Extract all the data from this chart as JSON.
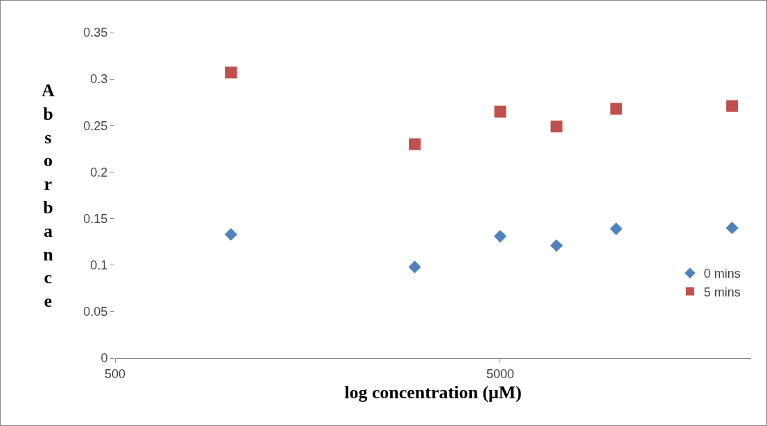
{
  "chart_data": {
    "type": "scatter",
    "xlabel": "log concentration (μM)",
    "ylabel": "Absorbance",
    "x": [
      1000,
      3000,
      5000,
      7000,
      10000,
      20000
    ],
    "series": [
      {
        "name": "0 mins",
        "color": "#4f81bd",
        "marker": "diamond",
        "values": [
          0.133,
          0.098,
          0.131,
          0.121,
          0.139,
          0.14
        ]
      },
      {
        "name": "5 mins",
        "color": "#c0504d",
        "marker": "square",
        "values": [
          0.307,
          0.23,
          0.265,
          0.249,
          0.268,
          0.271
        ]
      }
    ],
    "log": "x",
    "xlim": [
      500,
      22400
    ],
    "xticks": [
      500,
      5000
    ],
    "ylim": [
      0,
      0.35
    ],
    "yticks": [
      0,
      0.05,
      0.1,
      0.15,
      0.2,
      0.25,
      0.3,
      0.35
    ],
    "grid": false,
    "legend": "bottom right"
  }
}
